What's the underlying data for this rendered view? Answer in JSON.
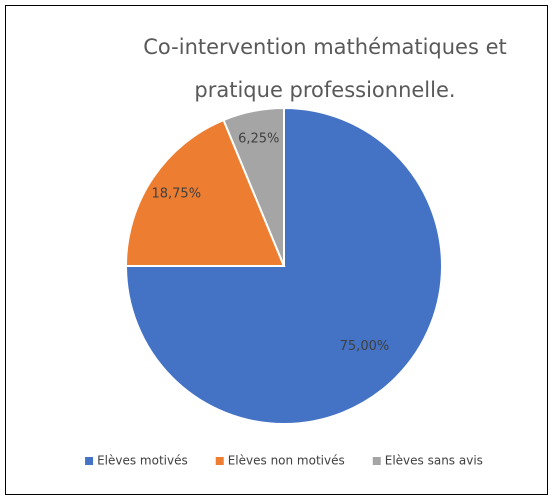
{
  "chart_data": {
    "type": "pie",
    "title": "Co-intervention mathématiques et pratique professionnelle.",
    "categories": [
      "Elèves motivés",
      "Elèves non motivés",
      "Elèves sans avis"
    ],
    "values": [
      75,
      18.75,
      6.25
    ],
    "value_labels": [
      "75,00%",
      "18,75%",
      "6,25%"
    ],
    "colors": [
      "#4472c4",
      "#ed7d31",
      "#a5a5a5"
    ],
    "legend": "bottom"
  }
}
